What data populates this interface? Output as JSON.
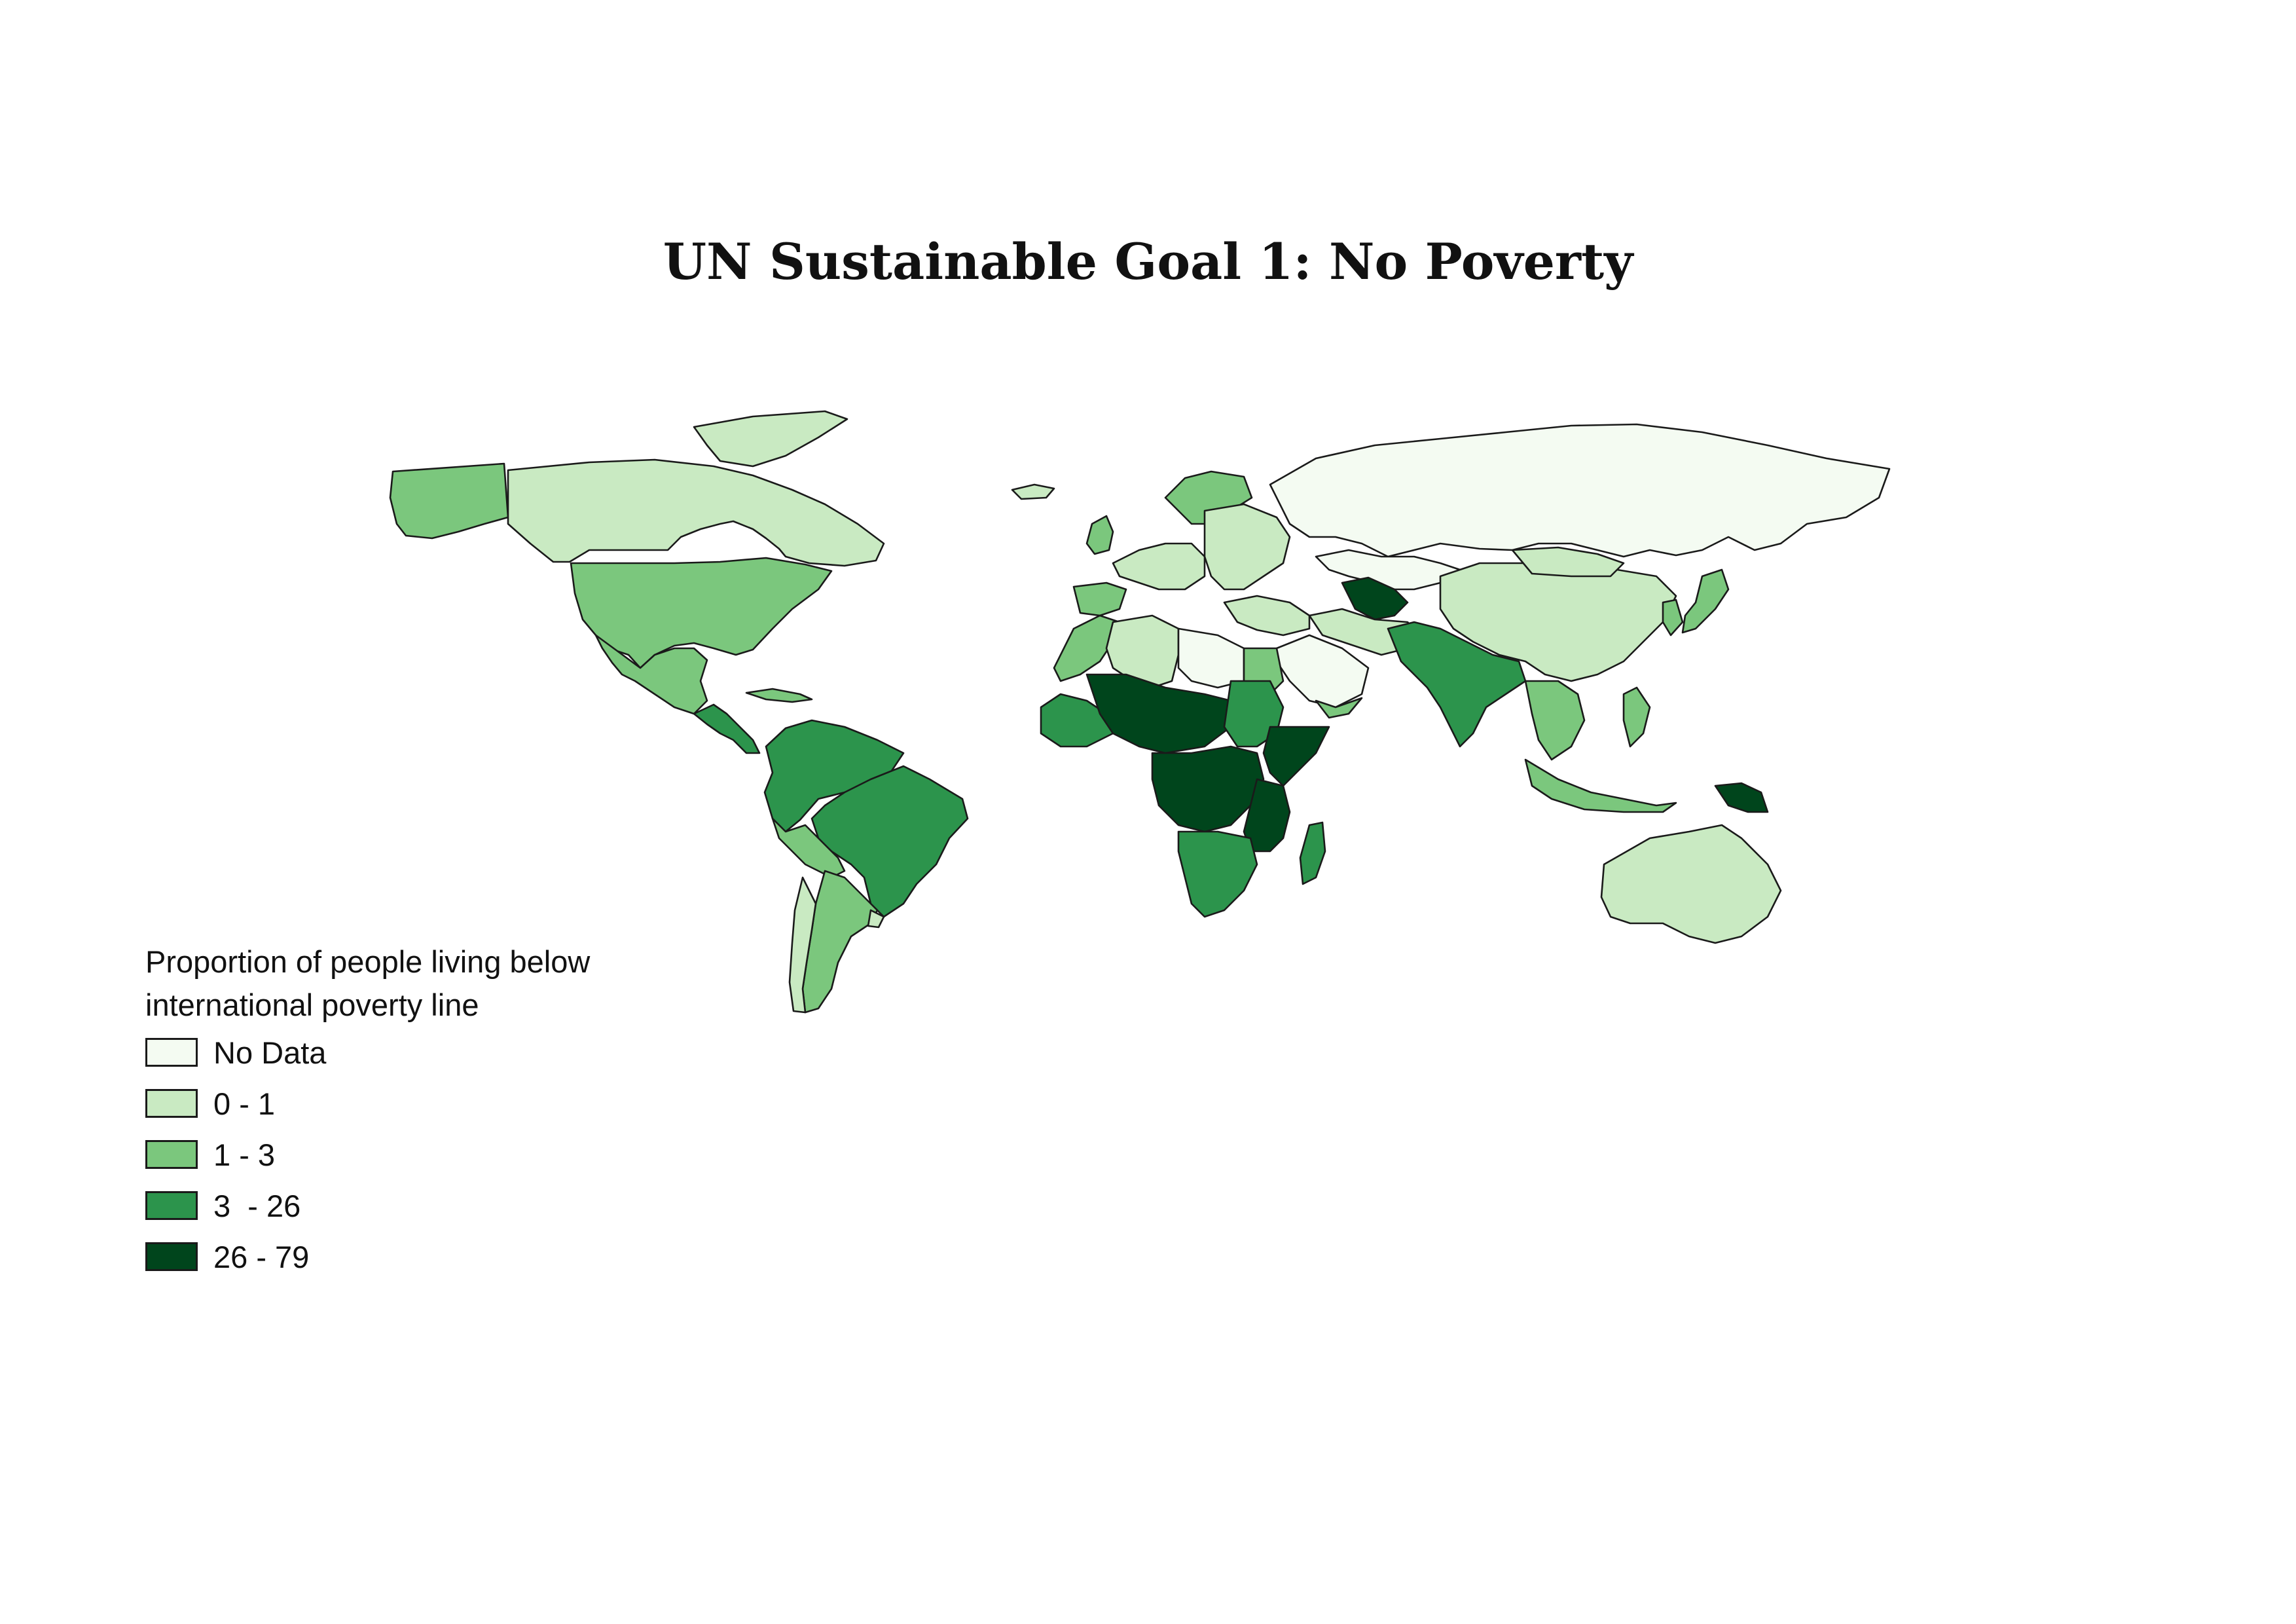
{
  "title": "UN Sustainable Goal 1: No Poverty",
  "legend": {
    "title": "Proportion of people living below international poverty line",
    "items": [
      {
        "label": "No Data",
        "color": "#f4fbf2"
      },
      {
        "label": "0 - 1",
        "color": "#c9eac2"
      },
      {
        "label": "1 - 3",
        "color": "#7bc77d"
      },
      {
        "label": "3  - 26",
        "color": "#2c944c"
      },
      {
        "label": "26 - 79",
        "color": "#00451c"
      }
    ]
  },
  "regions": [
    {
      "name": "alaska",
      "class": 2
    },
    {
      "name": "canada",
      "class": 1
    },
    {
      "name": "greenland",
      "class": 1
    },
    {
      "name": "united-states",
      "class": 2
    },
    {
      "name": "mexico",
      "class": 2
    },
    {
      "name": "central-america",
      "class": 3
    },
    {
      "name": "cuba",
      "class": 2
    },
    {
      "name": "northern-south-america",
      "class": 3
    },
    {
      "name": "brazil",
      "class": 3
    },
    {
      "name": "peru-bolivia",
      "class": 2
    },
    {
      "name": "chile",
      "class": 1
    },
    {
      "name": "argentina",
      "class": 2
    },
    {
      "name": "uruguay",
      "class": 1
    },
    {
      "name": "iceland",
      "class": 1
    },
    {
      "name": "british-isles",
      "class": 2
    },
    {
      "name": "scandinavia",
      "class": 2
    },
    {
      "name": "western-europe",
      "class": 1
    },
    {
      "name": "eastern-europe",
      "class": 1
    },
    {
      "name": "iberia",
      "class": 2
    },
    {
      "name": "russia",
      "class": 0
    },
    {
      "name": "kazakhstan",
      "class": 0
    },
    {
      "name": "central-asia",
      "class": 4
    },
    {
      "name": "middle-east",
      "class": 1
    },
    {
      "name": "saudi-arabia",
      "class": 0
    },
    {
      "name": "iran-afghanistan",
      "class": 1
    },
    {
      "name": "pakistan-india",
      "class": 3
    },
    {
      "name": "china",
      "class": 1
    },
    {
      "name": "mongolia",
      "class": 1
    },
    {
      "name": "japan",
      "class": 2
    },
    {
      "name": "korea",
      "class": 2
    },
    {
      "name": "southeast-asia",
      "class": 2
    },
    {
      "name": "indonesia",
      "class": 2
    },
    {
      "name": "philippines",
      "class": 2
    },
    {
      "name": "papua-new-guinea",
      "class": 4
    },
    {
      "name": "australia",
      "class": 1
    },
    {
      "name": "morocco",
      "class": 2
    },
    {
      "name": "algeria",
      "class": 1
    },
    {
      "name": "libya",
      "class": 0
    },
    {
      "name": "egypt",
      "class": 2
    },
    {
      "name": "west-africa-coast",
      "class": 3
    },
    {
      "name": "sahel",
      "class": 4
    },
    {
      "name": "sudan",
      "class": 3
    },
    {
      "name": "horn-of-africa",
      "class": 4
    },
    {
      "name": "central-africa",
      "class": 4
    },
    {
      "name": "east-africa",
      "class": 4
    },
    {
      "name": "southern-africa",
      "class": 3
    },
    {
      "name": "madagascar",
      "class": 3
    },
    {
      "name": "yemen",
      "class": 2
    }
  ]
}
